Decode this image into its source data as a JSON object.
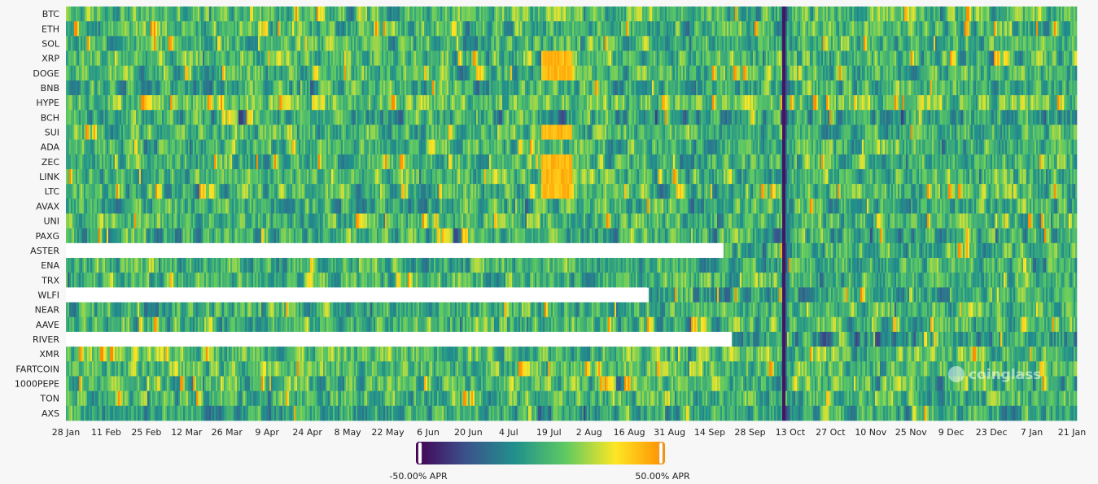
{
  "chart_data": {
    "type": "heatmap",
    "title": "",
    "metric": "APR",
    "rows": [
      "BTC",
      "ETH",
      "SOL",
      "XRP",
      "DOGE",
      "BNB",
      "HYPE",
      "BCH",
      "SUI",
      "ADA",
      "ZEC",
      "LINK",
      "LTC",
      "AVAX",
      "UNI",
      "PAXG",
      "ASTER",
      "ENA",
      "TRX",
      "WLFI",
      "NEAR",
      "AAVE",
      "RIVER",
      "XMR",
      "FARTCOIN",
      "1000PEPE",
      "TON",
      "AXS"
    ],
    "x_ticks": [
      "28 Jan",
      "11 Feb",
      "25 Feb",
      "12 Mar",
      "26 Mar",
      "9 Apr",
      "24 Apr",
      "8 May",
      "22 May",
      "6 Jun",
      "20 Jun",
      "4 Jul",
      "19 Jul",
      "2 Aug",
      "16 Aug",
      "31 Aug",
      "14 Sep",
      "28 Sep",
      "13 Oct",
      "27 Oct",
      "10 Nov",
      "25 Nov",
      "9 Dec",
      "23 Dec",
      "7 Jan",
      "21 Jan"
    ],
    "color_scale": {
      "min": -50,
      "max": 50,
      "min_label": "-50.00% APR",
      "max_label": "50.00% APR",
      "colormap": "viridis-orange",
      "stops": [
        "#440154",
        "#3b528b",
        "#21918c",
        "#5ec962",
        "#fde725",
        "#ff8c00"
      ]
    },
    "missing_data_until_fraction": {
      "ASTER": 0.649,
      "WLFI": 0.575,
      "RIVER": 0.658
    },
    "typical_row_level": {
      "BTC": 8,
      "ETH": 7,
      "SOL": 6,
      "XRP": 7,
      "DOGE": 6,
      "BNB": 2,
      "HYPE": 18,
      "BCH": -6,
      "SUI": 4,
      "ADA": 5,
      "ZEC": 6,
      "LINK": 6,
      "LTC": 5,
      "AVAX": 3,
      "UNI": 7,
      "PAXG": -2,
      "ASTER": 3,
      "ENA": 3,
      "TRX": 5,
      "WLFI": -4,
      "NEAR": 4,
      "AAVE": 6,
      "RIVER": -12,
      "XMR": 14,
      "FARTCOIN": 12,
      "1000PEPE": 6,
      "TON": 5,
      "AXS": -3
    },
    "notes": [
      "Vertical dark line near 11 Oct across all rows",
      "Bright yellow streak around mid July in DOGE, SUI, ZEC, LINK, LTC"
    ]
  },
  "watermark": "coinglass"
}
